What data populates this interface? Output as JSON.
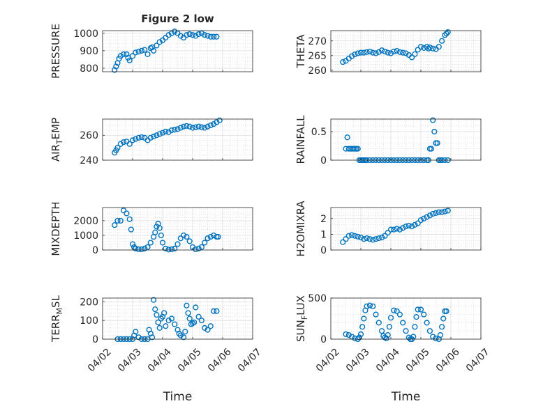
{
  "figure": {
    "title": "Figure 2 low",
    "xlabel": "Time"
  },
  "x_ticks": [
    "04/02",
    "04/03",
    "04/04",
    "04/05",
    "04/06",
    "04/07"
  ],
  "marker_color": "#0072BD",
  "chart_data": [
    {
      "type": "scatter",
      "title": "Figure 2 low",
      "ylabel": "PRESSURE",
      "ylim": [
        780,
        1015
      ],
      "yticks": [
        800,
        900,
        1000
      ],
      "xlim": [
        "04/02",
        "04/07"
      ],
      "xlabel": "",
      "grid": true,
      "x": [
        2.4,
        2.45,
        2.5,
        2.55,
        2.6,
        2.7,
        2.8,
        2.85,
        2.9,
        3.0,
        3.1,
        3.2,
        3.3,
        3.4,
        3.5,
        3.6,
        3.65,
        3.7,
        3.8,
        3.9,
        4.0,
        4.1,
        4.2,
        4.3,
        4.4,
        4.5,
        4.6,
        4.7,
        4.8,
        4.9,
        5.0,
        5.1,
        5.2,
        5.3,
        5.4,
        5.5,
        5.6,
        5.7,
        5.8
      ],
      "y": [
        790,
        810,
        830,
        855,
        870,
        880,
        880,
        860,
        845,
        870,
        890,
        895,
        900,
        905,
        880,
        915,
        920,
        900,
        930,
        950,
        960,
        975,
        990,
        1000,
        1010,
        1000,
        985,
        975,
        990,
        995,
        990,
        985,
        995,
        1000,
        990,
        985,
        980,
        980,
        980
      ]
    },
    {
      "type": "scatter",
      "title": "",
      "ylabel": "THETA",
      "ylim": [
        259.5,
        273.5
      ],
      "yticks": [
        260,
        265,
        270
      ],
      "xlim": [
        "04/02",
        "04/07"
      ],
      "xlabel": "",
      "grid": true,
      "x": [
        2.4,
        2.5,
        2.6,
        2.7,
        2.8,
        2.9,
        3.0,
        3.1,
        3.2,
        3.3,
        3.4,
        3.5,
        3.6,
        3.7,
        3.8,
        3.9,
        4.0,
        4.1,
        4.2,
        4.3,
        4.4,
        4.5,
        4.6,
        4.7,
        4.8,
        4.9,
        5.0,
        5.1,
        5.2,
        5.25,
        5.3,
        5.4,
        5.5,
        5.6,
        5.7,
        5.8,
        5.85,
        5.9
      ],
      "y": [
        262.8,
        263.2,
        264,
        264.8,
        265.4,
        265.8,
        266,
        266,
        266.2,
        266.4,
        266,
        265.8,
        266.2,
        266.8,
        266.4,
        266,
        265.8,
        266.4,
        266.6,
        266.2,
        266,
        265.8,
        265.2,
        264.4,
        265.5,
        267,
        268,
        267.6,
        268,
        267.4,
        267.8,
        267.4,
        267.2,
        268,
        270,
        272,
        272.5,
        273
      ]
    },
    {
      "type": "scatter",
      "title": "",
      "ylabel": "AIR_TEMP",
      "ylim": [
        240,
        273
      ],
      "yticks": [
        240,
        260
      ],
      "xlim": [
        "04/02",
        "04/07"
      ],
      "xlabel": "",
      "grid": true,
      "x": [
        2.4,
        2.45,
        2.5,
        2.6,
        2.7,
        2.8,
        2.9,
        3.0,
        3.1,
        3.2,
        3.3,
        3.4,
        3.5,
        3.6,
        3.7,
        3.8,
        3.9,
        4.0,
        4.1,
        4.2,
        4.3,
        4.4,
        4.5,
        4.6,
        4.7,
        4.8,
        4.9,
        5.0,
        5.1,
        5.2,
        5.3,
        5.4,
        5.5,
        5.6,
        5.7,
        5.8,
        5.9
      ],
      "y": [
        246,
        248,
        250,
        253,
        254.5,
        255,
        253,
        256,
        257,
        258,
        258.5,
        258,
        256,
        258,
        259,
        260,
        261,
        262,
        263,
        262.5,
        264,
        264.5,
        265,
        266,
        267,
        267.5,
        267,
        266,
        266.5,
        267,
        266.5,
        266,
        267,
        268,
        269,
        270.5,
        272
      ]
    },
    {
      "type": "scatter",
      "title": "",
      "ylabel": "RAINFALL",
      "ylim": [
        0,
        0.72
      ],
      "yticks": [
        0,
        0.5
      ],
      "xlim": [
        "04/02",
        "04/07"
      ],
      "xlabel": "",
      "grid": true,
      "x": [
        2.5,
        2.55,
        2.6,
        2.65,
        2.7,
        2.75,
        2.8,
        2.85,
        2.9,
        2.95,
        3.0,
        3.05,
        3.1,
        3.15,
        3.2,
        3.3,
        3.4,
        3.5,
        3.6,
        3.7,
        3.8,
        3.9,
        4.0,
        4.1,
        4.2,
        4.3,
        4.4,
        4.5,
        4.6,
        4.7,
        4.8,
        4.9,
        5.0,
        5.1,
        5.2,
        5.25,
        5.3,
        5.35,
        5.4,
        5.45,
        5.5,
        5.55,
        5.6,
        5.65,
        5.7,
        5.8,
        5.9
      ],
      "y": [
        0.2,
        0.4,
        0.2,
        0.2,
        0.2,
        0.2,
        0.2,
        0.2,
        0.2,
        0,
        0,
        0,
        0,
        0,
        0,
        0,
        0,
        0,
        0,
        0,
        0,
        0,
        0,
        0,
        0,
        0,
        0,
        0,
        0,
        0,
        0,
        0,
        0,
        0,
        0,
        0,
        0.2,
        0.2,
        0.7,
        0.5,
        0.3,
        0.3,
        0,
        0,
        0,
        0,
        0
      ]
    },
    {
      "type": "scatter",
      "title": "",
      "ylabel": "MIXDEPTH",
      "ylim": [
        0,
        2900
      ],
      "yticks": [
        0,
        1000,
        2000
      ],
      "xlim": [
        "04/02",
        "04/07"
      ],
      "xlabel": "",
      "grid": true,
      "x": [
        2.4,
        2.5,
        2.6,
        2.7,
        2.8,
        2.9,
        2.95,
        3.0,
        3.05,
        3.1,
        3.2,
        3.3,
        3.4,
        3.5,
        3.6,
        3.7,
        3.75,
        3.8,
        3.85,
        3.9,
        3.95,
        4.0,
        4.1,
        4.2,
        4.3,
        4.4,
        4.5,
        4.6,
        4.7,
        4.8,
        4.9,
        5.0,
        5.1,
        5.2,
        5.3,
        5.4,
        5.5,
        5.6,
        5.7,
        5.8,
        5.85
      ],
      "y": [
        1700,
        2000,
        2000,
        2700,
        2500,
        2100,
        1400,
        400,
        200,
        100,
        50,
        50,
        100,
        200,
        500,
        900,
        1200,
        1600,
        1800,
        1500,
        1000,
        500,
        100,
        30,
        50,
        100,
        400,
        800,
        1000,
        900,
        600,
        200,
        50,
        100,
        200,
        500,
        800,
        900,
        1000,
        900,
        900
      ]
    },
    {
      "type": "scatter",
      "title": "",
      "ylabel": "H2OMIXRA",
      "ylim": [
        0,
        2.7
      ],
      "yticks": [
        0,
        1,
        2
      ],
      "xlim": [
        "04/02",
        "04/07"
      ],
      "xlabel": "",
      "grid": true,
      "x": [
        2.4,
        2.5,
        2.6,
        2.7,
        2.8,
        2.9,
        3.0,
        3.1,
        3.2,
        3.3,
        3.4,
        3.5,
        3.6,
        3.7,
        3.8,
        3.9,
        4.0,
        4.1,
        4.2,
        4.3,
        4.4,
        4.5,
        4.6,
        4.7,
        4.8,
        4.9,
        5.0,
        5.1,
        5.2,
        5.3,
        5.4,
        5.5,
        5.6,
        5.7,
        5.8,
        5.9
      ],
      "y": [
        0.5,
        0.7,
        0.9,
        0.95,
        0.9,
        0.85,
        0.8,
        0.7,
        0.75,
        0.7,
        0.65,
        0.7,
        0.75,
        0.8,
        0.9,
        1.1,
        1.3,
        1.3,
        1.35,
        1.3,
        1.4,
        1.5,
        1.55,
        1.5,
        1.6,
        1.7,
        1.9,
        2.0,
        2.1,
        2.2,
        2.3,
        2.35,
        2.4,
        2.4,
        2.45,
        2.5
      ]
    },
    {
      "type": "scatter",
      "title": "",
      "ylabel": "TERR_MSL",
      "ylim": [
        0,
        220
      ],
      "yticks": [
        0,
        100,
        200
      ],
      "xlim": [
        "04/02",
        "04/07"
      ],
      "xlabel": "Time",
      "grid": true,
      "x": [
        2.5,
        2.6,
        2.7,
        2.8,
        2.9,
        3.0,
        3.05,
        3.1,
        3.2,
        3.3,
        3.4,
        3.5,
        3.55,
        3.6,
        3.65,
        3.7,
        3.75,
        3.8,
        3.85,
        3.9,
        3.95,
        4.0,
        4.05,
        4.1,
        4.2,
        4.3,
        4.4,
        4.5,
        4.55,
        4.6,
        4.7,
        4.75,
        4.8,
        4.85,
        4.9,
        4.95,
        5.0,
        5.05,
        5.1,
        5.2,
        5.3,
        5.4,
        5.5,
        5.6,
        5.7,
        5.8
      ],
      "y": [
        0,
        0,
        0,
        0,
        0,
        0,
        20,
        40,
        10,
        0,
        0,
        0,
        50,
        30,
        10,
        210,
        160,
        130,
        90,
        60,
        110,
        120,
        140,
        70,
        100,
        110,
        80,
        50,
        30,
        20,
        10,
        40,
        180,
        140,
        110,
        80,
        85,
        90,
        170,
        120,
        100,
        60,
        50,
        70,
        150,
        150
      ]
    },
    {
      "type": "scatter",
      "title": "",
      "ylabel": "SUN_FLUX",
      "ylim": [
        0,
        500
      ],
      "yticks": [
        0,
        500
      ],
      "xlim": [
        "04/02",
        "04/07"
      ],
      "xlabel": "Time",
      "grid": true,
      "x": [
        2.5,
        2.6,
        2.7,
        2.8,
        2.9,
        2.95,
        3.0,
        3.05,
        3.1,
        3.15,
        3.2,
        3.3,
        3.4,
        3.5,
        3.6,
        3.7,
        3.75,
        3.8,
        3.85,
        3.9,
        3.95,
        4.0,
        4.1,
        4.2,
        4.3,
        4.4,
        4.5,
        4.6,
        4.65,
        4.7,
        4.75,
        4.8,
        4.85,
        4.9,
        5.0,
        5.1,
        5.2,
        5.3,
        5.4,
        5.5,
        5.6,
        5.65,
        5.7,
        5.75,
        5.8,
        5.85
      ],
      "y": [
        60,
        50,
        30,
        10,
        0,
        20,
        60,
        150,
        250,
        350,
        400,
        410,
        400,
        300,
        200,
        100,
        40,
        20,
        10,
        50,
        150,
        260,
        350,
        340,
        300,
        200,
        100,
        20,
        0,
        0,
        30,
        150,
        270,
        360,
        360,
        300,
        200,
        100,
        30,
        10,
        0,
        50,
        150,
        250,
        340,
        340
      ]
    }
  ]
}
